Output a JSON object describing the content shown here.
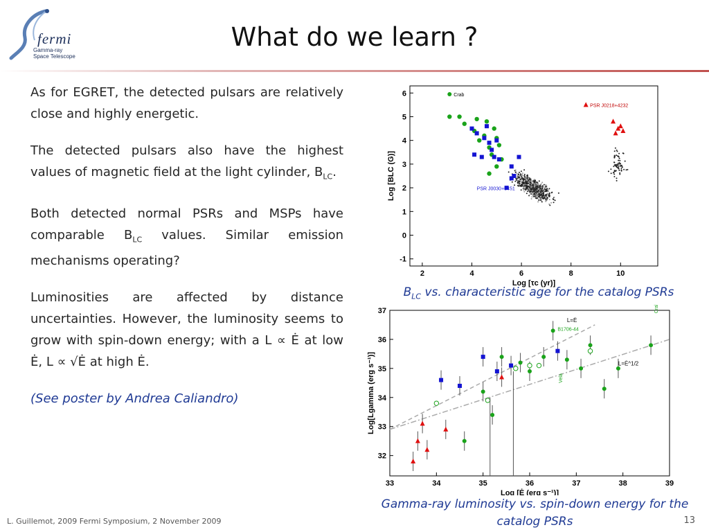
{
  "logo": {
    "brand": "fermi",
    "line1": "Gamma-ray",
    "line2": "Space Telescope"
  },
  "title": "What do we learn ?",
  "paragraphs": {
    "p1": "As for EGRET, the detected pulsars are relatively close and highly energetic.",
    "p2_pre": "The detected pulsars also have the highest values of magnetic field at the light cylinder, B",
    "p2_sub": "LC",
    "p2_post": ".",
    "p3_pre": "Both detected normal PSRs and MSPs have comparable B",
    "p3_sub": "LC",
    "p3_post": " values. Similar emission mechanisms operating?",
    "p4": "Luminosities are affected by distance uncertainties. However, the luminosity seems to grow with spin-down energy; with a L ∝ Ė at low Ė, L ∝ √Ė at high Ė.",
    "p5": "(See poster by Andrea Caliandro)"
  },
  "captions": {
    "top_main": "B",
    "top_sub": "LC",
    "top_rest": " vs. characteristic age for the catalog PSRs",
    "bottom": "Gamma-ray luminosity vs. spin-down energy for the catalog PSRs"
  },
  "footer": "L. Guillemot, 2009 Fermi Symposium, 2 November 2009",
  "page_number": "13",
  "colors": {
    "accent_rule": "#c0504d",
    "caption_blue": "#1f3a94",
    "normal_psr": "#1aa31a",
    "msp": "#1414d2",
    "highlight": "#e01010"
  },
  "chart_data": [
    {
      "type": "scatter",
      "xlabel": "Log [τc (yr)]",
      "ylabel": "Log [BLC (G)]",
      "xlim": [
        1.5,
        11.5
      ],
      "ylim": [
        -1.3,
        6.3
      ],
      "xticks": [
        2,
        4,
        6,
        8,
        10
      ],
      "yticks": [
        -1,
        0,
        1,
        2,
        3,
        4,
        5,
        6
      ],
      "legend": "top-left",
      "annotations": [
        "Crab",
        "PSR J0218+4232",
        "PSR J0030+0451"
      ],
      "series": [
        {
          "name": "Crab",
          "color": "#1aa31a",
          "x": [
            3.1,
            3.5,
            3.7,
            4.1,
            4.2,
            4.3,
            4.5,
            4.6,
            4.7,
            4.9,
            5.0,
            5.1,
            4.8,
            5.2,
            5.0,
            4.7
          ],
          "y": [
            5.0,
            5.0,
            4.7,
            4.4,
            4.9,
            4.0,
            4.2,
            4.8,
            3.7,
            4.5,
            4.1,
            3.8,
            3.4,
            3.2,
            2.9,
            2.6
          ]
        },
        {
          "series_color": "#1414d2",
          "x": [
            4.0,
            4.1,
            4.2,
            4.4,
            4.5,
            4.6,
            4.7,
            4.8,
            4.9,
            5.0,
            5.1,
            5.6,
            5.9,
            5.4,
            5.6,
            5.7
          ],
          "y": [
            4.5,
            3.4,
            4.3,
            3.3,
            4.1,
            4.6,
            3.9,
            3.6,
            3.3,
            4.0,
            3.2,
            2.9,
            3.3,
            2.0,
            2.4,
            2.5
          ]
        },
        {
          "name": "PSR J0218+4232",
          "color": "#e01010",
          "x": [
            9.7,
            9.8,
            9.9,
            10.0,
            10.1
          ],
          "y": [
            4.8,
            4.3,
            4.5,
            4.6,
            4.4
          ]
        }
      ]
    },
    {
      "type": "scatter",
      "xlabel": "Log [Ė (erg s⁻¹)]",
      "ylabel": "Log[Lgamma (erg s⁻¹)]",
      "xlim": [
        33,
        39
      ],
      "ylim": [
        31.3,
        37
      ],
      "xticks": [
        33,
        34,
        35,
        36,
        37,
        38,
        39
      ],
      "yticks": [
        32,
        33,
        34,
        35,
        36,
        37
      ],
      "annotations": [
        "L=Ė",
        "L=Ė^1/2",
        "Crab",
        "Vela",
        "B1706-44"
      ],
      "series": [
        {
          "name": "L=Ė",
          "x": [
            33,
            37.4
          ],
          "y": [
            32.9,
            36.5
          ]
        },
        {
          "name": "L=Ė^1/2",
          "x": [
            33,
            39
          ],
          "y": [
            32.9,
            36.0
          ]
        },
        {
          "series_color": "#1aa31a",
          "x": [
            34.6,
            35.0,
            35.2,
            35.4,
            35.8,
            36.0,
            36.3,
            36.5,
            36.8,
            37.1,
            37.3,
            37.6,
            37.9,
            38.6
          ],
          "y": [
            32.5,
            34.2,
            33.4,
            35.4,
            35.2,
            34.9,
            35.4,
            36.3,
            35.3,
            35.0,
            35.8,
            34.3,
            35.0,
            35.8
          ]
        },
        {
          "series_color": "#1414d2",
          "x": [
            34.1,
            34.5,
            35.0,
            35.3,
            35.6,
            36.6
          ],
          "y": [
            34.6,
            34.4,
            35.4,
            34.9,
            35.1,
            35.6
          ]
        },
        {
          "series_color": "#e01010",
          "x": [
            33.5,
            33.6,
            33.7,
            33.8,
            34.2,
            35.4
          ],
          "y": [
            31.8,
            32.5,
            33.1,
            32.2,
            32.9,
            34.7
          ]
        }
      ]
    }
  ]
}
